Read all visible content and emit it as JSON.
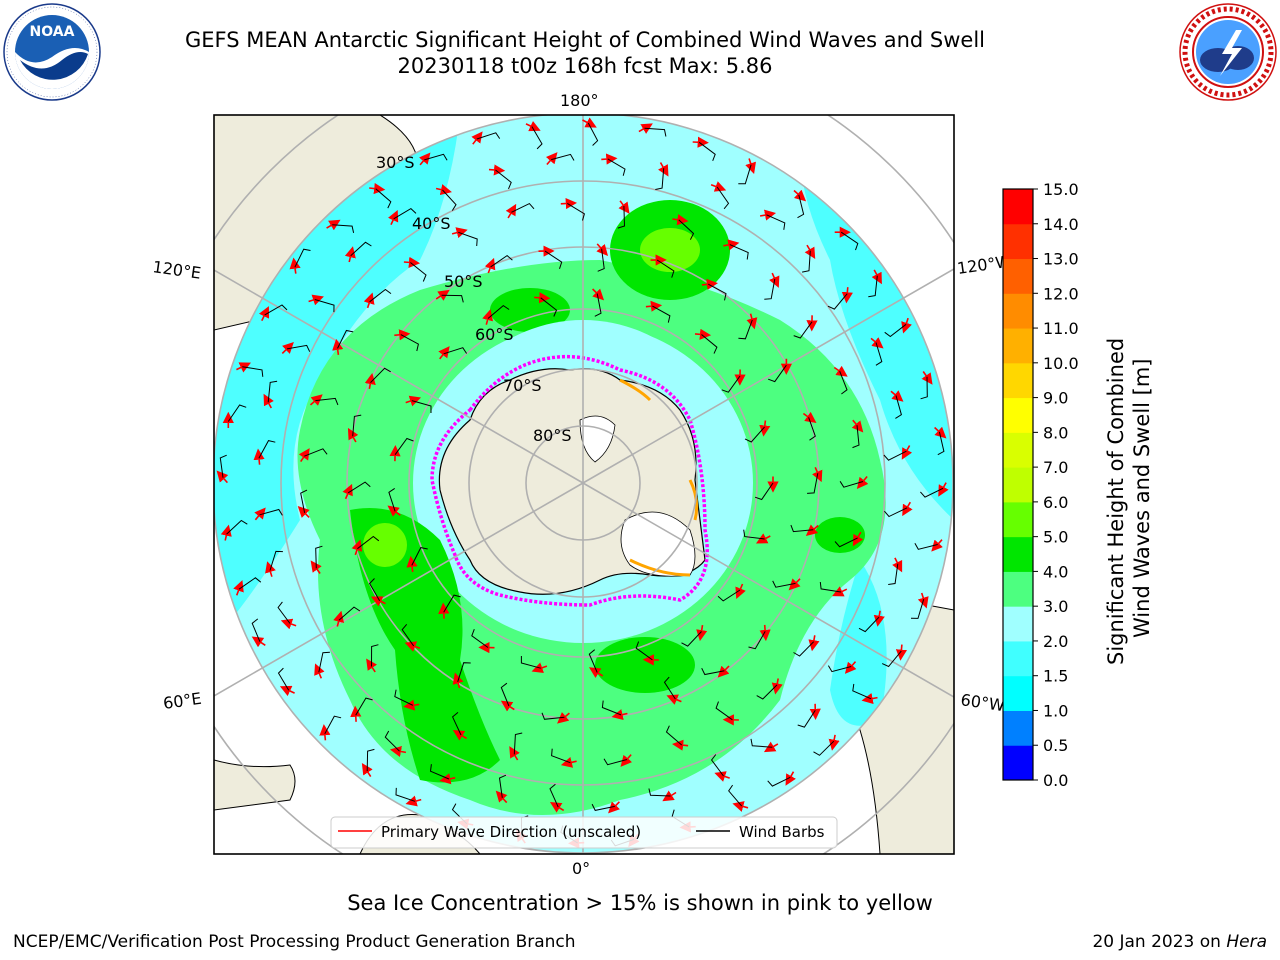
{
  "header": {
    "title_line1": "GEFS MEAN Antarctic Significant Height of Combined Wind Waves and Swell",
    "title_line2": "20230118 t00z 168h fcst   Max: 5.86"
  },
  "logos": {
    "left": {
      "icon": "noaa-logo",
      "text": "NOAA",
      "ring_text": "NATIONAL OCEANIC AND ATMOSPHERIC ADMINISTRATION · U.S. DEPARTMENT OF COMMERCE"
    },
    "right": {
      "icon": "nws-logo",
      "ring_text": "NATIONAL WEATHER SERVICE"
    }
  },
  "map": {
    "projection": "south-polar-stereographic",
    "longitude_labels": {
      "top": "180°",
      "bottom": "0°",
      "upper_left": "120°E",
      "upper_right": "120°W",
      "lower_left": "60°E",
      "lower_right": "60°W"
    },
    "latitude_labels": [
      "30°S",
      "40°S",
      "50°S",
      "60°S",
      "70°S",
      "80°S"
    ],
    "legend": {
      "primary_wave": "Primary Wave Direction (unscaled)",
      "wind_barbs": "Wind Barbs"
    },
    "colors": {
      "land": "#eeecdc",
      "grid": "#b0b0b0",
      "arrow": "#ff0000",
      "ice_edge": "#ff00ff"
    }
  },
  "colorbar": {
    "label_line1": "Significant Height of Combined",
    "label_line2": "Wind Waves and Swell [m]",
    "ticks": [
      "0.0",
      "0.5",
      "1.0",
      "1.5",
      "2.0",
      "3.0",
      "4.0",
      "5.0",
      "6.0",
      "7.0",
      "8.0",
      "9.0",
      "10.0",
      "11.0",
      "12.0",
      "13.0",
      "14.0",
      "15.0"
    ],
    "colors": [
      "#0000ff",
      "#0080ff",
      "#00ffff",
      "#40ffff",
      "#a0ffff",
      "#4dff80",
      "#00e600",
      "#66ff00",
      "#bfff00",
      "#d9ff00",
      "#ffff00",
      "#ffd700",
      "#ffb000",
      "#ff8c00",
      "#ff6000",
      "#ff3000",
      "#ff0000"
    ]
  },
  "caption": "Sea Ice Concentration > 15% is shown in pink to yellow",
  "footer": {
    "left": "NCEP/EMC/Verification Post Processing Product Generation Branch",
    "right_date": "20 Jan 2023 on ",
    "right_machine": "Hera"
  }
}
